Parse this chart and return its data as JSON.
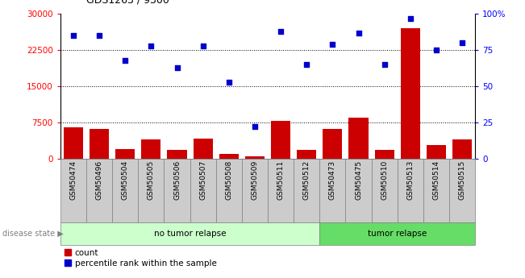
{
  "title": "GDS1263 / 9300",
  "samples": [
    "GSM50474",
    "GSM50496",
    "GSM50504",
    "GSM50505",
    "GSM50506",
    "GSM50507",
    "GSM50508",
    "GSM50509",
    "GSM50511",
    "GSM50512",
    "GSM50473",
    "GSM50475",
    "GSM50510",
    "GSM50513",
    "GSM50514",
    "GSM50515"
  ],
  "counts": [
    6500,
    6200,
    2000,
    4000,
    1800,
    4200,
    1000,
    400,
    7800,
    1800,
    6200,
    8500,
    1800,
    27000,
    2800,
    4000
  ],
  "percentiles": [
    85,
    85,
    68,
    78,
    63,
    78,
    53,
    22,
    88,
    65,
    79,
    87,
    65,
    97,
    75,
    80
  ],
  "no_tumor_count": 10,
  "tumor_count": 6,
  "bar_color": "#cc0000",
  "dot_color": "#0000cc",
  "no_tumor_color": "#ccffcc",
  "tumor_color": "#66dd66",
  "tick_bg_color": "#cccccc",
  "yticks_left": [
    0,
    7500,
    15000,
    22500,
    30000
  ],
  "yticks_right": [
    0,
    25,
    50,
    75,
    100
  ],
  "grid_lines": [
    7500,
    15000,
    22500
  ],
  "legend_count_label": "count",
  "legend_pct_label": "percentile rank within the sample",
  "disease_state_label": "disease state",
  "no_tumor_label": "no tumor relapse",
  "tumor_label": "tumor relapse",
  "figsize": [
    6.51,
    3.45
  ],
  "dpi": 100
}
